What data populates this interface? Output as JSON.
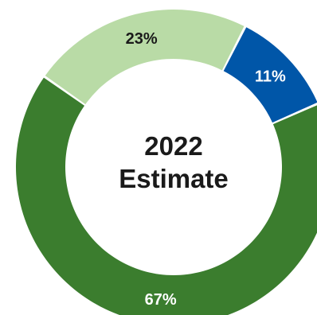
{
  "chart_data": {
    "type": "pie",
    "variant": "donut",
    "title": "2022 Estimate",
    "title_lines": [
      "2022",
      "Estimate"
    ],
    "slices": [
      {
        "value": 11,
        "label": "11%",
        "color": "#0056a8",
        "label_color": "#ffffff"
      },
      {
        "value": 67,
        "label": "67%",
        "color": "#3b7d2e",
        "label_color": "#ffffff"
      },
      {
        "value": 23,
        "label": "23%",
        "color": "#b9dba6",
        "label_color": "#1a1a1a"
      }
    ],
    "start_angle_deg": 27,
    "direction": "clockwise"
  }
}
